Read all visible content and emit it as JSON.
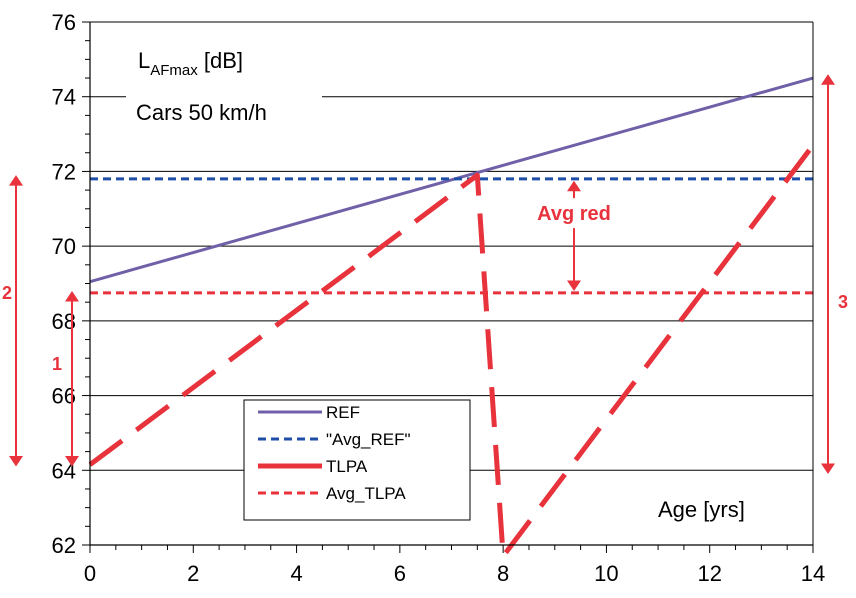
{
  "chart_data": {
    "type": "line",
    "title": "",
    "xlabel": "Age [yrs]",
    "ylabel": "",
    "xlim": [
      0,
      14
    ],
    "ylim": [
      62,
      76
    ],
    "x_ticks": [
      0,
      2,
      4,
      6,
      8,
      10,
      12,
      14
    ],
    "y_ticks": [
      62,
      64,
      66,
      68,
      70,
      72,
      74,
      76
    ],
    "grid": "horizontal",
    "annotations": {
      "quantity_main": "L",
      "quantity_sub": "AFmax",
      "quantity_unit": " [dB]",
      "condition": "Cars 50 km/h",
      "avg_red": "Avg red",
      "marker_1": "1",
      "marker_2": "2",
      "marker_3": "3"
    },
    "legend_position": "bottom-center",
    "series": [
      {
        "name": "REF",
        "style": "solid",
        "color": "#7060a8",
        "x": [
          0,
          14
        ],
        "y": [
          69.05,
          74.5
        ]
      },
      {
        "name": "\"Avg_REF\"",
        "style": "dashed",
        "color": "#1f4ea8",
        "x": [
          0,
          14
        ],
        "y": [
          71.8,
          71.8
        ]
      },
      {
        "name": "TLPA",
        "style": "long-dash",
        "color": "#e8323c",
        "x": [
          0,
          7.5,
          8.0,
          14
        ],
        "y": [
          64.15,
          71.9,
          61.7,
          72.7
        ]
      },
      {
        "name": "Avg_TLPA",
        "style": "dashed",
        "color": "#e8323c",
        "x": [
          0,
          14
        ],
        "y": [
          68.75,
          68.75
        ]
      }
    ]
  }
}
